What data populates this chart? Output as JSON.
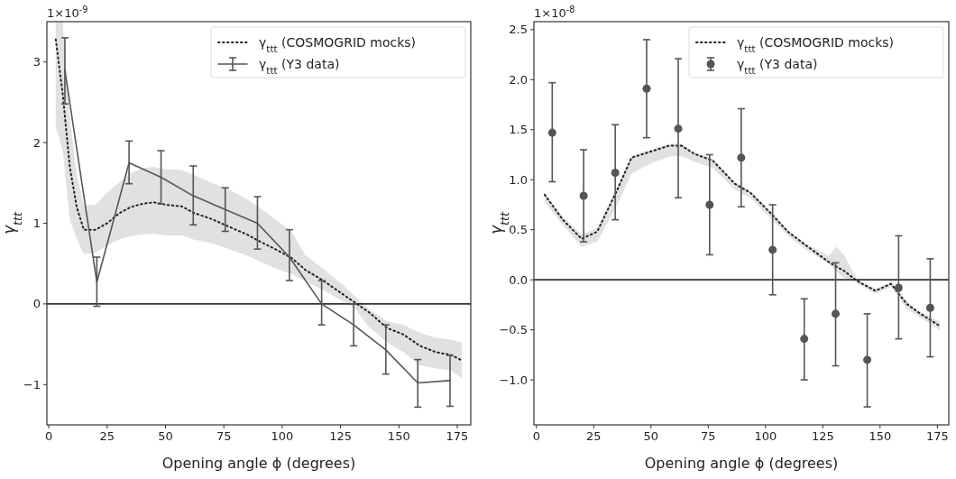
{
  "chart_data": [
    {
      "type": "line",
      "xlabel": "Opening angle ϕ (degrees)",
      "ylabel": "γ$_{ttt}$",
      "annotations": [
        "1×10$^{-9}$"
      ],
      "xlim": [
        -0.8,
        180.8
      ],
      "ylim": [
        -1.5,
        3.5
      ],
      "xticks": [
        0,
        25,
        50,
        75,
        100,
        125,
        150,
        175
      ],
      "yticks": [
        {
          "value": -1,
          "label": "−1"
        },
        0,
        1,
        2,
        3
      ],
      "legend": "top right",
      "grid": false,
      "ref_lines": [
        {
          "axis": "y",
          "value": 0,
          "color": "#333333"
        }
      ],
      "series": [
        {
          "name": "γ$_{ttt}$ (COSMOGRID mocks)",
          "type": "line",
          "line_style": "dotted",
          "marker": "none",
          "color": "#222222",
          "x": [
            3,
            6,
            9,
            12,
            15,
            20,
            25,
            30,
            35,
            40,
            45,
            50,
            57,
            62,
            70,
            77,
            85,
            90,
            97,
            104,
            110,
            117,
            125,
            131,
            137,
            145,
            152,
            159,
            166,
            172,
            177
          ],
          "values": [
            3.28,
            2.6,
            1.7,
            1.2,
            0.92,
            0.92,
            1.0,
            1.12,
            1.2,
            1.24,
            1.26,
            1.23,
            1.21,
            1.13,
            1.05,
            0.96,
            0.86,
            0.78,
            0.68,
            0.57,
            0.42,
            0.3,
            0.14,
            0.02,
            -0.1,
            -0.3,
            -0.38,
            -0.52,
            -0.6,
            -0.63,
            -0.7
          ],
          "lower": [
            2.2,
            1.9,
            1.05,
            0.8,
            0.62,
            0.63,
            0.72,
            0.8,
            0.84,
            0.86,
            0.87,
            0.85,
            0.85,
            0.8,
            0.75,
            0.68,
            0.6,
            0.53,
            0.44,
            0.37,
            0.28,
            0.18,
            0.05,
            -0.05,
            -0.28,
            -0.48,
            -0.6,
            -0.76,
            -0.8,
            -0.82,
            -0.92
          ],
          "upper": [
            3.5,
            3.5,
            2.3,
            1.6,
            1.22,
            1.23,
            1.38,
            1.5,
            1.62,
            1.68,
            1.7,
            1.67,
            1.66,
            1.6,
            1.5,
            1.42,
            1.3,
            1.2,
            1.05,
            0.9,
            0.6,
            0.45,
            0.26,
            0.1,
            -0.06,
            -0.22,
            -0.26,
            -0.36,
            -0.42,
            -0.44,
            -0.48
          ]
        },
        {
          "name": "γ$_{ttt}$ (Y3 data)",
          "type": "line",
          "line_style": "solid",
          "marker": "none",
          "color": "#555555",
          "x": [
            6.9,
            20.6,
            34.4,
            48.1,
            61.9,
            75.6,
            89.4,
            103.1,
            116.9,
            130.6,
            144.4,
            158.1,
            171.9
          ],
          "values": [
            2.9,
            0.27,
            1.75,
            1.57,
            1.34,
            1.17,
            1.0,
            0.58,
            0.0,
            -0.26,
            -0.57,
            -0.98,
            -0.95
          ],
          "errors": [
            [
              2.48,
              3.3
            ],
            [
              -0.03,
              0.58
            ],
            [
              1.49,
              2.02
            ],
            [
              1.24,
              1.9
            ],
            [
              0.98,
              1.71
            ],
            [
              0.9,
              1.44
            ],
            [
              0.68,
              1.33
            ],
            [
              0.29,
              0.92
            ],
            [
              -0.26,
              0.29
            ],
            [
              -0.52,
              0.0
            ],
            [
              -0.87,
              -0.26
            ],
            [
              -1.28,
              -0.69
            ],
            [
              -1.27,
              -0.64
            ]
          ]
        }
      ]
    },
    {
      "type": "line",
      "xlabel": "Opening angle ϕ (degrees)",
      "ylabel": "γ$_{ttt}$",
      "annotations": [
        "1×10$^{-8}$"
      ],
      "xlim": [
        -1.1,
        180
      ],
      "ylim": [
        -1.45,
        2.58
      ],
      "xticks": [
        0,
        25,
        50,
        75,
        100,
        125,
        150,
        175
      ],
      "yticks": [
        {
          "value": -1,
          "label": "−1.0"
        },
        {
          "value": -0.5,
          "label": "−0.5"
        },
        {
          "value": 0,
          "label": "0.0"
        },
        {
          "value": 0.5,
          "label": "0.5"
        },
        {
          "value": 1,
          "label": "1.0"
        },
        {
          "value": 1.5,
          "label": "1.5"
        },
        {
          "value": 2,
          "label": "2.0"
        },
        {
          "value": 2.5,
          "label": "2.5"
        }
      ],
      "legend": "top right",
      "grid": false,
      "ref_lines": [
        {
          "axis": "y",
          "value": 0,
          "color": "#333333"
        }
      ],
      "series": [
        {
          "name": "γ$_{ttt}$ (COSMOGRID mocks)",
          "type": "line",
          "line_style": "dotted",
          "marker": "none",
          "color": "#222222",
          "x": [
            3.6,
            11.5,
            19.7,
            26.5,
            34.7,
            41.5,
            49.7,
            57.9,
            63.3,
            68.8,
            77,
            86.6,
            93.4,
            102.9,
            109.8,
            117.9,
            127.5,
            131,
            134.3,
            139.8,
            148,
            154.8,
            161.6,
            167,
            176
          ],
          "values": [
            0.85,
            0.6,
            0.41,
            0.48,
            0.87,
            1.22,
            1.28,
            1.34,
            1.34,
            1.26,
            1.19,
            0.96,
            0.87,
            0.65,
            0.48,
            0.34,
            0.18,
            0.13,
            0.09,
            -0.01,
            -0.11,
            -0.04,
            -0.24,
            -0.33,
            -0.46
          ],
          "lower": [
            0.78,
            0.55,
            0.33,
            0.38,
            0.72,
            1.06,
            1.16,
            1.23,
            1.24,
            1.18,
            1.12,
            0.9,
            0.82,
            0.6,
            0.44,
            0.3,
            0.16,
            0.08,
            0.02,
            -0.03,
            -0.14,
            -0.07,
            -0.29,
            -0.37,
            -0.5
          ],
          "upper": [
            0.87,
            0.63,
            0.45,
            0.52,
            0.9,
            1.24,
            1.3,
            1.36,
            1.36,
            1.28,
            1.21,
            0.98,
            0.89,
            0.67,
            0.5,
            0.36,
            0.24,
            0.33,
            0.25,
            0.01,
            -0.09,
            -0.02,
            -0.21,
            -0.31,
            -0.42
          ]
        },
        {
          "name": "γ$_{ttt}$ (Y3 data)",
          "type": "scatter",
          "marker": "circle",
          "color": "#555555",
          "x": [
            6.9,
            20.6,
            34.4,
            48.1,
            61.9,
            75.6,
            89.4,
            103.1,
            116.9,
            130.6,
            144.4,
            158.1,
            171.9
          ],
          "values": [
            1.47,
            0.84,
            1.07,
            1.91,
            1.51,
            0.75,
            1.22,
            0.3,
            -0.59,
            -0.34,
            -0.8,
            -0.08,
            -0.28
          ],
          "errors": [
            [
              0.98,
              1.97
            ],
            [
              0.38,
              1.3
            ],
            [
              0.6,
              1.55
            ],
            [
              1.42,
              2.4
            ],
            [
              0.82,
              2.21
            ],
            [
              0.25,
              1.25
            ],
            [
              0.73,
              1.71
            ],
            [
              -0.15,
              0.75
            ],
            [
              -1.0,
              -0.19
            ],
            [
              -0.86,
              0.17
            ],
            [
              -1.27,
              -0.34
            ],
            [
              -0.59,
              0.44
            ],
            [
              -0.77,
              0.21
            ]
          ]
        }
      ]
    }
  ]
}
